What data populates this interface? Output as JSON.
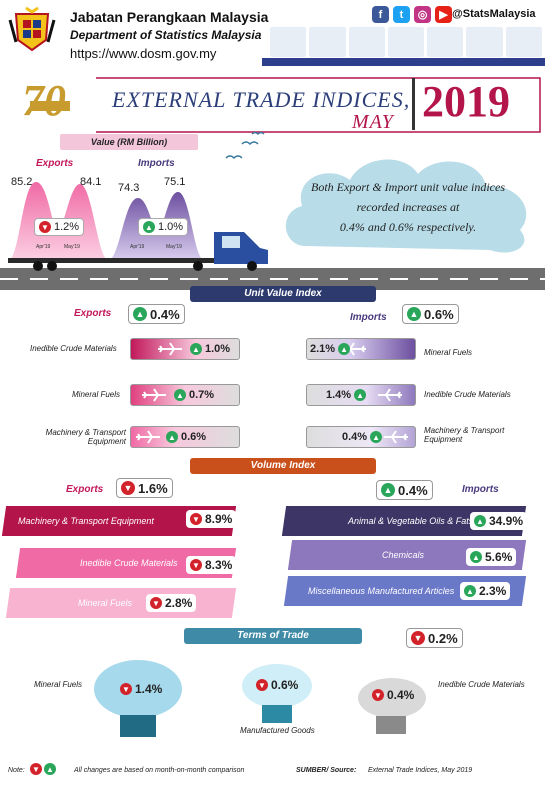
{
  "header": {
    "org_name": "Jabatan Perangkaan Malaysia",
    "org_name_en": "Department of Statistics Malaysia",
    "url": "https://www.dosm.gov.my",
    "social_handle": "@StatsMalaysia",
    "social_icons": [
      "facebook-icon",
      "twitter-icon",
      "instagram-icon",
      "youtube-icon"
    ]
  },
  "title": {
    "line1": "EXTERNAL TRADE INDICES,",
    "line2": "MAY",
    "year": "2019",
    "badge_text": "70 tahun"
  },
  "value": {
    "header": "Value (RM Billion)",
    "exports": {
      "label": "Exports",
      "prev": "85.2",
      "curr": "84.1",
      "change": "1.2%",
      "direction": "down",
      "prev_label": "Apr'19",
      "curr_label": "May'19"
    },
    "imports": {
      "label": "Imports",
      "prev": "74.3",
      "curr": "75.1",
      "change": "1.0%",
      "direction": "up",
      "prev_label": "Apr'19",
      "curr_label": "May'19"
    }
  },
  "cloud_text": {
    "line1": "Both Export & Import unit value indices",
    "line2": "recorded increases at",
    "line3": "0.4% and 0.6% respectively."
  },
  "unit_value_index": {
    "header": "Unit Value Index",
    "exports": {
      "label": "Exports",
      "change": "0.4%",
      "direction": "up",
      "items": [
        {
          "name": "Inedible Crude Materials",
          "change": "1.0%",
          "direction": "up"
        },
        {
          "name": "Mineral Fuels",
          "change": "0.7%",
          "direction": "up"
        },
        {
          "name": "Machinery & Transport Equipment",
          "change": "0.6%",
          "direction": "up"
        }
      ]
    },
    "imports": {
      "label": "Imports",
      "change": "0.6%",
      "direction": "up",
      "items": [
        {
          "name": "Mineral Fuels",
          "change": "2.1%",
          "direction": "up"
        },
        {
          "name": "Inedible Crude Materials",
          "change": "1.4%",
          "direction": "up"
        },
        {
          "name": "Machinery & Transport Equipment",
          "change": "0.4%",
          "direction": "up"
        }
      ]
    }
  },
  "volume_index": {
    "header": "Volume Index",
    "exports": {
      "label": "Exports",
      "change": "1.6%",
      "direction": "down",
      "items": [
        {
          "name": "Machinery & Transport Equipment",
          "change": "8.9%",
          "direction": "down"
        },
        {
          "name": "Inedible Crude Materials",
          "change": "8.3%",
          "direction": "down"
        },
        {
          "name": "Mineral Fuels",
          "change": "2.8%",
          "direction": "down"
        }
      ]
    },
    "imports": {
      "label": "Imports",
      "change": "0.4%",
      "direction": "up",
      "items": [
        {
          "name": "Animal & Vegetable Oils & Fats",
          "change": "34.9%",
          "direction": "up"
        },
        {
          "name": "Chemicals",
          "change": "5.6%",
          "direction": "up"
        },
        {
          "name": "Miscellaneous Manufactured Articles",
          "change": "2.3%",
          "direction": "up"
        }
      ]
    }
  },
  "terms_of_trade": {
    "header": "Terms of Trade",
    "change": "0.2%",
    "direction": "down",
    "items": [
      {
        "name": "Mineral Fuels",
        "change": "1.4%",
        "direction": "down"
      },
      {
        "name": "Manufactured Goods",
        "change": "0.6%",
        "direction": "down"
      },
      {
        "name": "Inedible Crude Materials",
        "change": "0.4%",
        "direction": "down"
      }
    ]
  },
  "footer": {
    "note_label": "Note:",
    "note_text": "All changes are based on month-on-month comparison",
    "source_label": "SUMBER/ Source:",
    "source_text": "External Trade Indices, May 2019"
  },
  "colors": {
    "navy": "#2d3a6e",
    "orange": "#c9501b",
    "teal": "#3f8aa6",
    "export_pink": "#e0407f",
    "import_purple": "#6d4fa0",
    "up_green": "#2aa65a",
    "down_red": "#d2232a"
  }
}
